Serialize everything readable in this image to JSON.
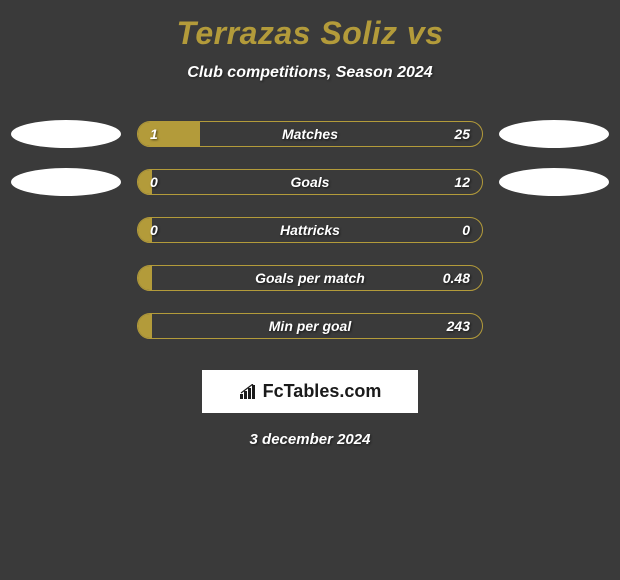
{
  "title": "Terrazas Soliz vs",
  "subtitle": "Club competitions, Season 2024",
  "colors": {
    "background": "#3a3a3a",
    "accent": "#b39b3a",
    "text": "#ffffff",
    "ellipse": "#ffffff",
    "logo_bg": "#ffffff",
    "logo_text": "#1a1a1a"
  },
  "stats": [
    {
      "label": "Matches",
      "left_value": "1",
      "right_value": "25",
      "left_fill_pct": 18,
      "right_fill_pct": 0,
      "show_ellipses": true
    },
    {
      "label": "Goals",
      "left_value": "0",
      "right_value": "12",
      "left_fill_pct": 4,
      "right_fill_pct": 0,
      "show_ellipses": true
    },
    {
      "label": "Hattricks",
      "left_value": "0",
      "right_value": "0",
      "left_fill_pct": 4,
      "right_fill_pct": 0,
      "show_ellipses": false
    },
    {
      "label": "Goals per match",
      "left_value": "",
      "right_value": "0.48",
      "left_fill_pct": 4,
      "right_fill_pct": 0,
      "show_ellipses": false
    },
    {
      "label": "Min per goal",
      "left_value": "",
      "right_value": "243",
      "left_fill_pct": 4,
      "right_fill_pct": 0,
      "show_ellipses": false
    }
  ],
  "logo_text": "FcTables.com",
  "date": "3 december 2024"
}
